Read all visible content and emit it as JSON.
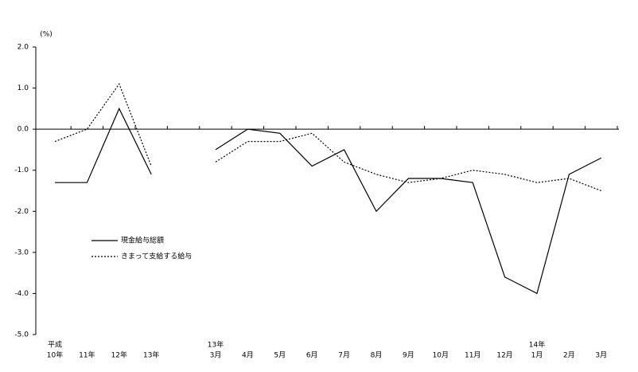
{
  "chart_data": {
    "type": "line",
    "y_label": "(%)",
    "categories": [
      "10年",
      "11年",
      "12年",
      "13年",
      null,
      "3月",
      "4月",
      "5月",
      "6月",
      "7月",
      "8月",
      "9月",
      "10月",
      "11月",
      "12月",
      "1月",
      "2月",
      "3月"
    ],
    "category_top_labels": [
      "平成",
      null,
      null,
      null,
      null,
      "13年",
      null,
      null,
      null,
      null,
      null,
      null,
      null,
      null,
      null,
      "14年",
      null,
      null
    ],
    "series": [
      {
        "name": "現金給与総額",
        "color": "#000000",
        "dash": "solid",
        "values": [
          -1.3,
          -1.3,
          0.5,
          -1.1,
          null,
          -0.5,
          0.0,
          -0.1,
          -0.9,
          -0.5,
          -2.0,
          -1.2,
          -1.2,
          -1.3,
          -3.6,
          -4.0,
          -1.1,
          -0.7
        ]
      },
      {
        "name": "きまって支給する給与",
        "color": "#000000",
        "dash": "dotted",
        "values": [
          -0.3,
          0.0,
          1.1,
          -0.9,
          null,
          -0.8,
          -0.3,
          -0.3,
          -0.1,
          -0.8,
          -1.1,
          -1.3,
          -1.2,
          -1.0,
          -1.1,
          -1.3,
          -1.2,
          -1.5
        ]
      }
    ],
    "ylim": [
      -5,
      2
    ],
    "yticks": [
      {
        "value": 2,
        "label": "2.0"
      },
      {
        "value": 1,
        "label": "1.0"
      },
      {
        "value": 0,
        "label": "0.0"
      },
      {
        "value": -1,
        "label": "-1.0"
      },
      {
        "value": -2,
        "label": "-2.0"
      },
      {
        "value": -3,
        "label": "-3.0"
      },
      {
        "value": -4,
        "label": "-4.0"
      },
      {
        "value": -5,
        "label": "-5.0"
      }
    ],
    "legend_position": "lower left"
  }
}
